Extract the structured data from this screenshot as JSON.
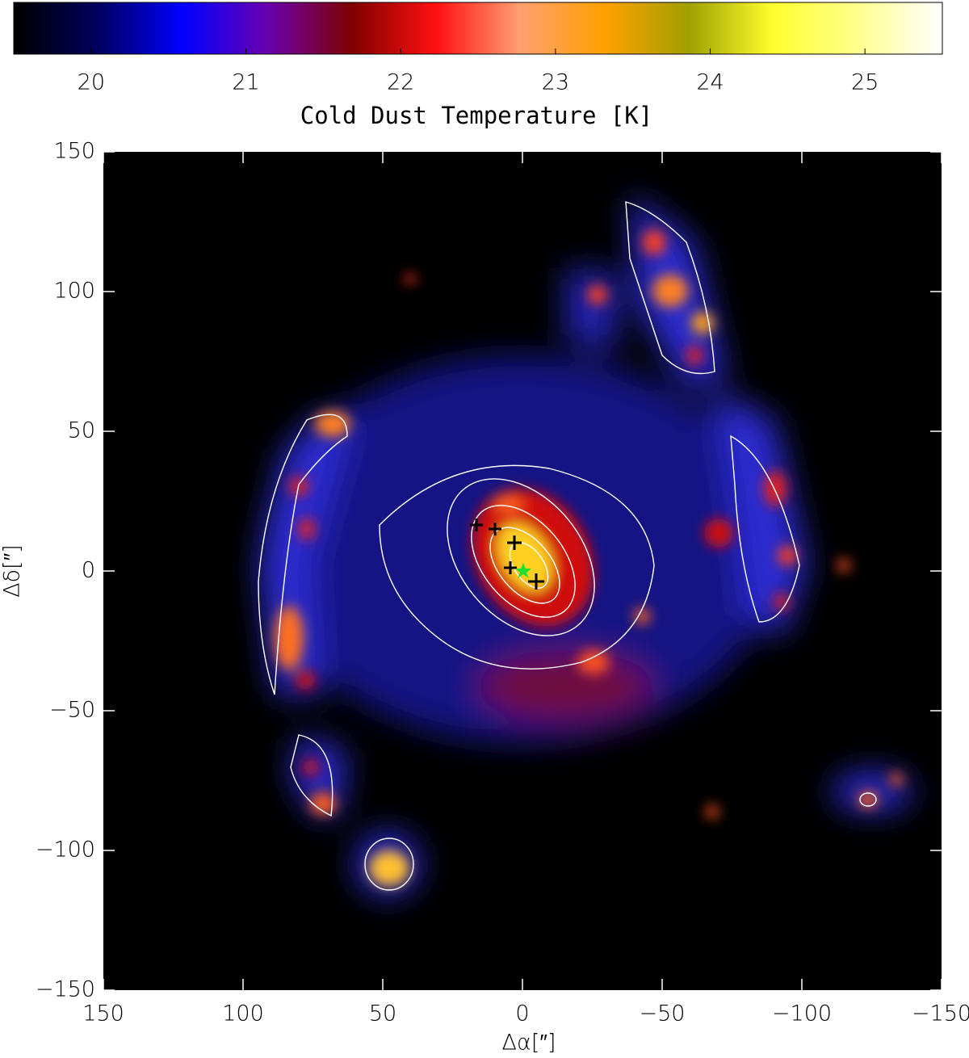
{
  "chart_data": {
    "type": "heatmap",
    "colorbar": {
      "label": "Cold Dust Temperature [K]",
      "clim": [
        19.5,
        25.5
      ],
      "ticks": [
        20,
        21,
        22,
        23,
        24,
        25
      ],
      "colormap": [
        "#000000",
        "#000060",
        "#0000ff",
        "#6a00b0",
        "#800000",
        "#ff1010",
        "#ffa070",
        "#ffa000",
        "#a0a000",
        "#ffff30",
        "#ffff90",
        "#ffffff"
      ]
    },
    "xlabel": "Δα[″]",
    "ylabel": "Δδ[″]",
    "xlim": [
      150,
      -150
    ],
    "ylim": [
      -150,
      150
    ],
    "xticks": [
      150,
      100,
      50,
      0,
      {
        "value": -50,
        "label": "−50"
      },
      {
        "value": -100,
        "label": "−100"
      },
      {
        "value": -150,
        "label": "−150"
      }
    ],
    "yticks": [
      {
        "value": -150,
        "label": "−150"
      },
      {
        "value": -100,
        "label": "−100"
      },
      {
        "value": -50,
        "label": "−50"
      },
      0,
      50,
      100,
      150
    ]
  }
}
